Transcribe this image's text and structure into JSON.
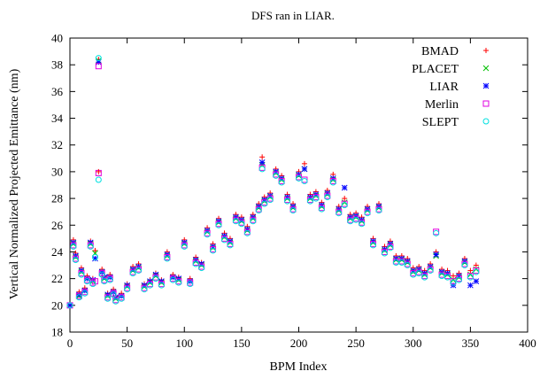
{
  "chart_data": {
    "type": "scatter",
    "title": "DFS ran in LIAR.",
    "xlabel": "BPM Index",
    "ylabel": "Vertical Normalized Projected Emittance (nm)",
    "xlim": [
      0,
      400
    ],
    "ylim": [
      18,
      40
    ],
    "xticks": [
      "0",
      "50",
      "100",
      "150",
      "200",
      "250",
      "300",
      "350",
      "400"
    ],
    "yticks": [
      "18",
      "20",
      "22",
      "24",
      "26",
      "28",
      "30",
      "32",
      "34",
      "36",
      "38",
      "40"
    ],
    "grid": false,
    "legend_position": "top-right",
    "series": [
      {
        "name": "BMAD",
        "marker": "plus",
        "color": "#ff0000",
        "x": [
          0,
          3,
          5,
          8,
          10,
          13,
          15,
          18,
          20,
          22,
          25,
          28,
          30,
          33,
          35,
          38,
          40,
          45,
          50,
          55,
          60,
          65,
          70,
          75,
          80,
          85,
          90,
          95,
          100,
          105,
          110,
          115,
          120,
          125,
          130,
          135,
          140,
          145,
          150,
          155,
          160,
          165,
          168,
          170,
          175,
          180,
          185,
          190,
          195,
          200,
          205,
          210,
          215,
          220,
          225,
          230,
          235,
          240,
          245,
          250,
          255,
          260,
          265,
          270,
          275,
          280,
          285,
          290,
          295,
          300,
          305,
          310,
          315,
          320,
          325,
          330,
          335,
          340,
          345,
          350,
          355
        ],
        "y": [
          20.0,
          24.9,
          23.9,
          21.0,
          22.8,
          21.3,
          22.2,
          24.8,
          22.0,
          24.1,
          38.4,
          22.7,
          22.2,
          20.9,
          22.3,
          21.2,
          20.7,
          20.9,
          21.6,
          22.9,
          23.1,
          21.6,
          21.9,
          22.4,
          21.9,
          24.0,
          22.3,
          22.1,
          24.9,
          22.0,
          23.6,
          23.2,
          25.8,
          24.6,
          26.5,
          25.4,
          25.0,
          26.8,
          26.6,
          25.9,
          26.8,
          27.6,
          31.1,
          28.1,
          28.4,
          30.2,
          29.7,
          28.3,
          27.6,
          30.0,
          30.6,
          28.3,
          28.5,
          27.7,
          28.6,
          29.8,
          27.4,
          28.0,
          26.8,
          26.9,
          26.6,
          27.4,
          25.0,
          27.6,
          24.4,
          24.8,
          23.7,
          23.7,
          23.5,
          22.8,
          22.9,
          22.6,
          23.1,
          24.0,
          22.7,
          22.6,
          22.2,
          22.4,
          23.5,
          22.6,
          23.0
        ]
      },
      {
        "name": "PLACET",
        "marker": "cross",
        "color": "#00c000",
        "x": [
          0,
          3,
          5,
          8,
          10,
          13,
          15,
          18,
          20,
          22,
          25,
          28,
          30,
          33,
          35,
          38,
          40,
          45,
          50,
          55,
          60,
          65,
          70,
          75,
          80,
          85,
          90,
          95,
          100,
          105,
          110,
          115,
          120,
          125,
          130,
          135,
          140,
          145,
          150,
          155,
          160,
          165,
          168,
          170,
          175,
          180,
          185,
          190,
          195,
          200,
          205,
          210,
          215,
          220,
          225,
          230,
          235,
          240,
          245,
          250,
          255,
          260,
          265,
          270,
          275,
          280,
          285,
          290,
          295,
          300,
          305,
          310,
          315,
          320,
          325,
          330,
          335,
          340,
          345,
          350,
          355
        ],
        "y": [
          20.0,
          24.6,
          23.6,
          20.7,
          22.5,
          21.1,
          22.0,
          24.6,
          21.8,
          23.9,
          38.3,
          22.5,
          22.0,
          20.7,
          22.1,
          21.0,
          20.5,
          20.7,
          21.4,
          22.6,
          22.8,
          21.4,
          21.7,
          22.2,
          21.7,
          23.7,
          22.1,
          21.9,
          24.6,
          21.8,
          23.3,
          23.0,
          25.5,
          24.3,
          26.2,
          25.1,
          24.7,
          26.5,
          26.3,
          25.6,
          26.5,
          27.3,
          30.5,
          27.8,
          28.1,
          29.9,
          29.4,
          28.0,
          27.3,
          29.7,
          30.2,
          28.0,
          28.2,
          27.4,
          28.3,
          29.4,
          27.1,
          27.7,
          26.5,
          26.6,
          26.3,
          27.1,
          24.7,
          27.3,
          24.1,
          24.5,
          23.4,
          23.4,
          23.2,
          22.5,
          22.6,
          22.3,
          22.8,
          23.7,
          22.4,
          22.3,
          21.9,
          22.1,
          23.2,
          22.3,
          22.7
        ]
      },
      {
        "name": "LIAR",
        "marker": "star",
        "color": "#0000ff",
        "x": [
          0,
          3,
          5,
          8,
          10,
          13,
          15,
          18,
          20,
          22,
          25,
          28,
          30,
          33,
          35,
          38,
          40,
          45,
          50,
          55,
          60,
          65,
          70,
          75,
          80,
          85,
          90,
          95,
          100,
          105,
          110,
          115,
          120,
          125,
          130,
          135,
          140,
          145,
          150,
          155,
          160,
          165,
          168,
          170,
          175,
          180,
          185,
          190,
          195,
          200,
          205,
          210,
          215,
          220,
          225,
          230,
          235,
          240,
          245,
          250,
          255,
          260,
          265,
          270,
          275,
          280,
          285,
          290,
          295,
          300,
          305,
          310,
          315,
          320,
          325,
          330,
          335,
          340,
          345,
          350,
          355
        ],
        "y": [
          20.0,
          24.7,
          23.7,
          20.8,
          22.6,
          21.1,
          22.0,
          24.7,
          21.9,
          23.5,
          38.2,
          22.5,
          22.1,
          20.8,
          22.1,
          21.0,
          20.6,
          20.7,
          21.5,
          22.7,
          22.9,
          21.5,
          21.8,
          22.3,
          21.8,
          23.8,
          22.1,
          22.0,
          24.7,
          21.8,
          23.4,
          23.1,
          25.6,
          24.4,
          26.3,
          25.2,
          24.8,
          26.6,
          26.4,
          25.7,
          26.6,
          27.4,
          30.7,
          27.9,
          28.2,
          30.0,
          29.5,
          28.1,
          27.4,
          29.8,
          30.2,
          28.1,
          28.3,
          27.5,
          28.4,
          29.5,
          27.2,
          28.8,
          26.6,
          26.7,
          26.4,
          27.2,
          24.8,
          27.4,
          24.2,
          24.6,
          23.5,
          23.5,
          23.3,
          22.6,
          22.7,
          22.4,
          22.9,
          23.8,
          22.5,
          22.4,
          21.5,
          22.2,
          23.3,
          21.5,
          21.8
        ]
      },
      {
        "name": "Merlin",
        "marker": "square",
        "color": "#e000e0",
        "x": [
          0,
          3,
          5,
          8,
          10,
          13,
          15,
          18,
          20,
          22,
          25,
          28,
          30,
          33,
          35,
          38,
          40,
          45,
          50,
          55,
          60,
          65,
          70,
          75,
          80,
          85,
          90,
          95,
          100,
          105,
          110,
          115,
          120,
          125,
          130,
          135,
          140,
          145,
          150,
          155,
          160,
          165,
          168,
          170,
          175,
          180,
          185,
          190,
          195,
          200,
          205,
          210,
          215,
          220,
          225,
          230,
          235,
          240,
          245,
          250,
          255,
          260,
          265,
          270,
          275,
          280,
          285,
          290,
          295,
          300,
          305,
          310,
          315,
          320,
          325,
          330,
          335,
          340,
          345,
          350,
          355
        ],
        "y": [
          20.0,
          24.5,
          23.5,
          20.7,
          22.4,
          21.0,
          21.9,
          24.5,
          21.7,
          21.8,
          37.9,
          22.4,
          21.9,
          20.6,
          22.0,
          20.9,
          20.4,
          20.6,
          21.3,
          22.5,
          22.7,
          21.3,
          21.6,
          22.1,
          21.6,
          23.6,
          22.0,
          21.8,
          24.5,
          21.7,
          23.2,
          22.9,
          25.4,
          24.2,
          26.1,
          25.0,
          24.6,
          26.4,
          26.2,
          25.5,
          26.4,
          27.2,
          30.3,
          27.7,
          28.0,
          29.8,
          29.3,
          27.9,
          27.2,
          29.6,
          29.4,
          27.9,
          28.1,
          27.3,
          28.2,
          29.3,
          27.0,
          27.6,
          26.4,
          26.5,
          26.2,
          27.0,
          24.6,
          27.2,
          24.0,
          24.4,
          23.3,
          23.3,
          23.1,
          22.4,
          22.5,
          22.2,
          22.7,
          25.5,
          22.3,
          22.2,
          21.8,
          22.0,
          23.1,
          22.2,
          22.6
        ]
      },
      {
        "name": "SLEPT",
        "marker": "circle",
        "color": "#00e0e0",
        "x": [
          0,
          3,
          5,
          8,
          10,
          13,
          15,
          18,
          20,
          22,
          25,
          28,
          30,
          33,
          35,
          38,
          40,
          45,
          50,
          55,
          60,
          65,
          70,
          75,
          80,
          85,
          90,
          95,
          100,
          105,
          110,
          115,
          120,
          125,
          130,
          135,
          140,
          145,
          150,
          155,
          160,
          165,
          168,
          170,
          175,
          180,
          185,
          190,
          195,
          200,
          205,
          210,
          215,
          220,
          225,
          230,
          235,
          240,
          245,
          250,
          255,
          260,
          265,
          270,
          275,
          280,
          285,
          290,
          295,
          300,
          305,
          310,
          315,
          320,
          325,
          330,
          335,
          340,
          345,
          350,
          355
        ],
        "y": [
          20.0,
          24.4,
          23.4,
          20.6,
          22.3,
          20.9,
          21.8,
          24.4,
          21.6,
          23.6,
          38.5,
          22.3,
          21.8,
          20.5,
          21.9,
          20.8,
          20.3,
          20.5,
          21.2,
          22.4,
          22.6,
          21.2,
          21.5,
          22.0,
          21.5,
          23.5,
          21.9,
          21.7,
          24.4,
          21.6,
          23.1,
          22.8,
          25.3,
          24.1,
          26.0,
          24.9,
          24.5,
          26.3,
          26.1,
          25.4,
          26.3,
          27.1,
          30.2,
          27.6,
          27.9,
          29.7,
          29.2,
          27.8,
          27.1,
          29.5,
          29.3,
          27.8,
          28.0,
          27.2,
          28.1,
          29.2,
          26.9,
          27.5,
          26.3,
          26.4,
          26.1,
          26.9,
          24.5,
          27.1,
          23.9,
          24.3,
          23.2,
          23.2,
          23.0,
          22.3,
          22.4,
          22.1,
          22.6,
          25.4,
          22.2,
          22.1,
          21.7,
          21.9,
          23.0,
          22.1,
          22.5
        ]
      }
    ],
    "extra_points": [
      {
        "series": "Merlin",
        "x": 25,
        "y": 29.9
      },
      {
        "series": "SLEPT",
        "x": 25,
        "y": 29.4
      },
      {
        "series": "BMAD",
        "x": 25,
        "y": 30.0
      }
    ]
  }
}
